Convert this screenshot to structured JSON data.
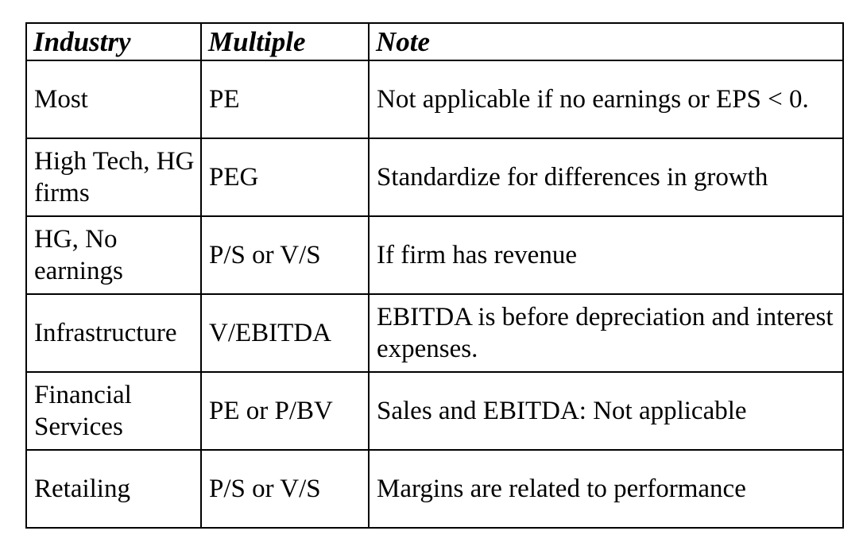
{
  "table": {
    "headers": [
      "Industry",
      "Multiple",
      "Note"
    ],
    "rows": [
      {
        "industry": "Most",
        "multiple": "PE",
        "note": "Not applicable if no earnings or EPS < 0."
      },
      {
        "industry": "High Tech, HG firms",
        "multiple": "PEG",
        "note": "Standardize for differences in growth"
      },
      {
        "industry": "HG, No earnings",
        "multiple": "P/S or V/S",
        "note": "If firm has revenue"
      },
      {
        "industry": "Infrastructure",
        "multiple": "V/EBITDA",
        "note": "EBITDA is before depreciation and interest expenses."
      },
      {
        "industry": "Financial Services",
        "multiple": "PE or P/BV",
        "note": "Sales and EBITDA: Not applicable"
      },
      {
        "industry": "Retailing",
        "multiple": "P/S or V/S",
        "note": "Margins are related to performance"
      }
    ]
  }
}
